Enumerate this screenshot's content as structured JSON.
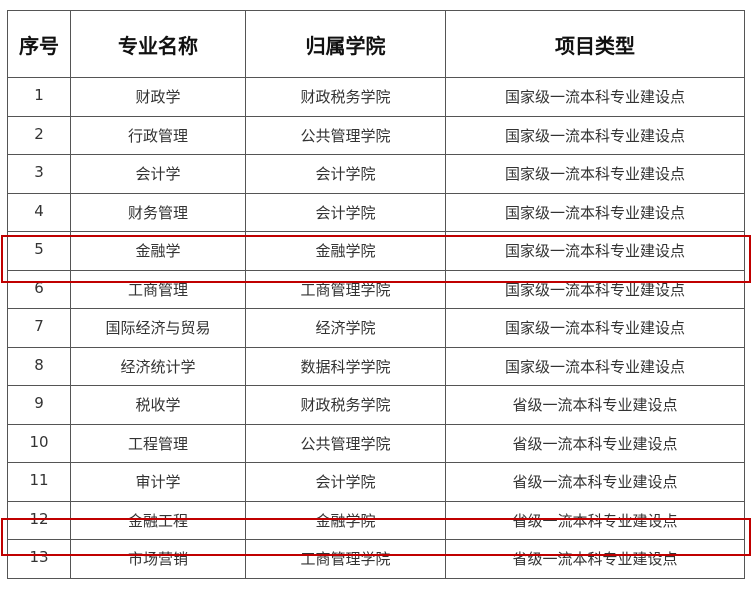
{
  "table": {
    "headers": [
      "序号",
      "专业名称",
      "归属学院",
      "项目类型"
    ],
    "rows": [
      [
        "1",
        "财政学",
        "财政税务学院",
        "国家级一流本科专业建设点"
      ],
      [
        "2",
        "行政管理",
        "公共管理学院",
        "国家级一流本科专业建设点"
      ],
      [
        "3",
        "会计学",
        "会计学院",
        "国家级一流本科专业建设点"
      ],
      [
        "4",
        "财务管理",
        "会计学院",
        "国家级一流本科专业建设点"
      ],
      [
        "5",
        "金融学",
        "金融学院",
        "国家级一流本科专业建设点"
      ],
      [
        "6",
        "工商管理",
        "工商管理学院",
        "国家级一流本科专业建设点"
      ],
      [
        "7",
        "国际经济与贸易",
        "经济学院",
        "国家级一流本科专业建设点"
      ],
      [
        "8",
        "经济统计学",
        "数据科学学院",
        "国家级一流本科专业建设点"
      ],
      [
        "9",
        "税收学",
        "财政税务学院",
        "省级一流本科专业建设点"
      ],
      [
        "10",
        "工程管理",
        "公共管理学院",
        "省级一流本科专业建设点"
      ],
      [
        "11",
        "审计学",
        "会计学院",
        "省级一流本科专业建设点"
      ],
      [
        "12",
        "金融工程",
        "金融学院",
        "省级一流本科专业建设点"
      ],
      [
        "13",
        "市场营销",
        "工商管理学院",
        "省级一流本科专业建设点"
      ]
    ],
    "highlighted_rows": [
      "5",
      "12"
    ],
    "highlight_color": "#c00000"
  }
}
